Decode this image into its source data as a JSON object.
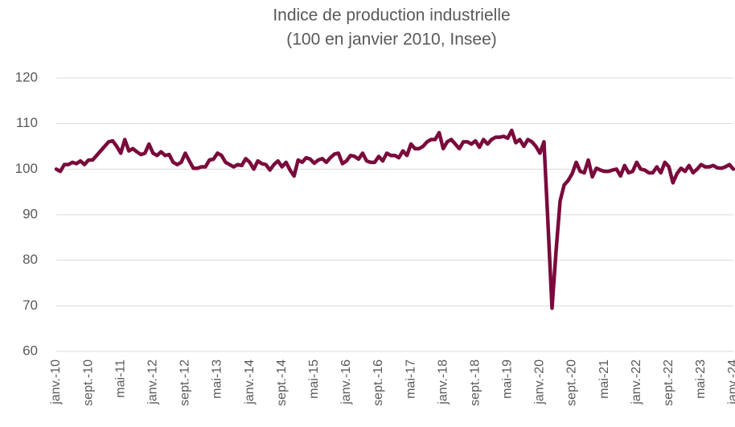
{
  "chart_data": {
    "type": "line",
    "title": "Indice de production industrielle",
    "subtitle": "(100 en janvier 2010, Insee)",
    "categories": [
      "janv.-10",
      null,
      null,
      null,
      null,
      null,
      null,
      null,
      "sept.-10",
      null,
      null,
      null,
      null,
      null,
      null,
      null,
      "mai-11",
      null,
      null,
      null,
      null,
      null,
      null,
      null,
      "janv.-12",
      null,
      null,
      null,
      null,
      null,
      null,
      null,
      "sept.-12",
      null,
      null,
      null,
      null,
      null,
      null,
      null,
      "mai-13",
      null,
      null,
      null,
      null,
      null,
      null,
      null,
      "janv.-14",
      null,
      null,
      null,
      null,
      null,
      null,
      null,
      "sept.-14",
      null,
      null,
      null,
      null,
      null,
      null,
      null,
      "mai-15",
      null,
      null,
      null,
      null,
      null,
      null,
      null,
      "janv.-16",
      null,
      null,
      null,
      null,
      null,
      null,
      null,
      "sept.-16",
      null,
      null,
      null,
      null,
      null,
      null,
      null,
      "mai-17",
      null,
      null,
      null,
      null,
      null,
      null,
      null,
      "janv.-18",
      null,
      null,
      null,
      null,
      null,
      null,
      null,
      "sept.-18",
      null,
      null,
      null,
      null,
      null,
      null,
      null,
      "mai-19",
      null,
      null,
      null,
      null,
      null,
      null,
      null,
      "janv.-20",
      null,
      null,
      null,
      null,
      null,
      null,
      null,
      "sept.-20",
      null,
      null,
      null,
      null,
      null,
      null,
      null,
      "mai-21",
      null,
      null,
      null,
      null,
      null,
      null,
      null,
      "janv.-22",
      null,
      null,
      null,
      null,
      null,
      null,
      null,
      "sept.-22",
      null,
      null,
      null,
      null,
      null,
      null,
      null,
      "mai-23",
      null,
      null,
      null,
      null,
      null,
      null,
      null,
      "janv.-24"
    ],
    "values": [
      100,
      99.5,
      101,
      101,
      101.5,
      101.2,
      101.8,
      101,
      102,
      102,
      103,
      104,
      105,
      106,
      106.2,
      105,
      103.5,
      106.5,
      104,
      104.5,
      103.8,
      103.2,
      103.5,
      105.5,
      103.5,
      103,
      103.8,
      103,
      103.2,
      101.5,
      101,
      101.5,
      103.5,
      101.8,
      100.2,
      100.2,
      100.5,
      100.5,
      102,
      102.2,
      103.5,
      103,
      101.5,
      101,
      100.5,
      101,
      100.8,
      102.3,
      101.5,
      100,
      101.8,
      101.2,
      101,
      99.8,
      101,
      101.8,
      100.5,
      101.5,
      99.8,
      98.5,
      102,
      101.5,
      102.5,
      102.2,
      101.3,
      102,
      102.3,
      101.5,
      102.5,
      103.3,
      103.5,
      101.2,
      101.8,
      103,
      102.8,
      102.2,
      103.5,
      101.8,
      101.5,
      101.5,
      102.8,
      101.8,
      103.5,
      103,
      103,
      102.5,
      104,
      103,
      105.5,
      104.5,
      104.5,
      105,
      106,
      106.5,
      106.5,
      108,
      104.5,
      106,
      106.5,
      105.5,
      104.5,
      106,
      106,
      105.5,
      106.2,
      104.8,
      106.5,
      105.5,
      106.5,
      107,
      107,
      107.2,
      106.8,
      108.5,
      105.8,
      106.5,
      105,
      106.5,
      106,
      105,
      103.5,
      106,
      88,
      69.5,
      82,
      93,
      96.5,
      97.5,
      99,
      101.5,
      99.5,
      99.2,
      102,
      98.3,
      100.2,
      99.8,
      99.5,
      99.5,
      99.8,
      100,
      98.5,
      100.8,
      99.2,
      99.5,
      101.5,
      100,
      99.8,
      99.2,
      99.2,
      100.5,
      99.2,
      101.5,
      100.5,
      97,
      99,
      100.2,
      99.5,
      100.8,
      99.2,
      100,
      101,
      100.5,
      100.5,
      100.8,
      100.3,
      100.2,
      100.5,
      101,
      100
    ],
    "color": "#7a0a3c",
    "ylim": [
      60,
      120
    ],
    "yticks": [
      60,
      70,
      80,
      90,
      100,
      110,
      120
    ],
    "grid": true
  }
}
